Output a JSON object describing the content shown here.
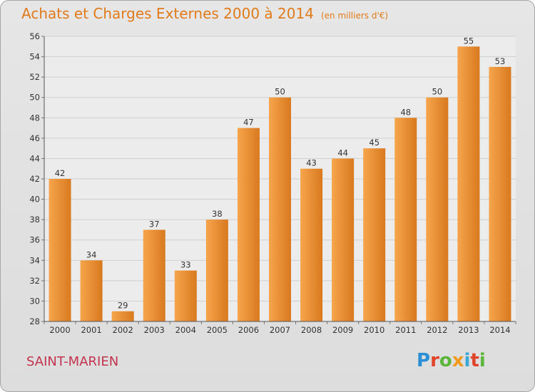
{
  "header": {
    "title": "Achats et Charges Externes 2000 à 2014",
    "unit": "(en milliers d'€)"
  },
  "footer": {
    "city": "SAINT-MARIEN",
    "brand": "Proxiti",
    "brand_colors": [
      "#2b8fd6",
      "#e0442b",
      "#5ab53a",
      "#f29a1d",
      "#3aa7d9",
      "#e0442b",
      "#5ab53a"
    ]
  },
  "colors": {
    "bar_light": "#f6a54c",
    "bar_dark": "#d8791f",
    "title": "#e07b1c",
    "city": "#c2344e"
  },
  "chart_data": {
    "type": "bar",
    "title": "Achats et Charges Externes 2000 à 2014",
    "subtitle": "(en milliers d'€)",
    "categories": [
      "2000",
      "2001",
      "2002",
      "2003",
      "2004",
      "2005",
      "2006",
      "2007",
      "2008",
      "2009",
      "2010",
      "2011",
      "2012",
      "2013",
      "2014"
    ],
    "values": [
      42,
      34,
      29,
      37,
      33,
      38,
      47,
      50,
      43,
      44,
      45,
      48,
      50,
      55,
      53
    ],
    "ylim": [
      28,
      56
    ],
    "yticks": [
      28,
      30,
      32,
      34,
      36,
      38,
      40,
      42,
      44,
      46,
      48,
      50,
      52,
      54,
      56
    ],
    "grid": true,
    "data_labels": true
  }
}
